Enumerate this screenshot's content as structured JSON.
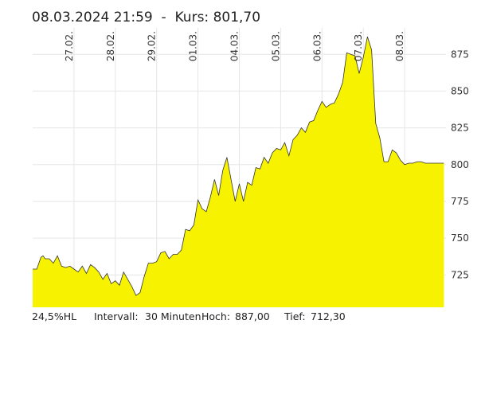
{
  "header": {
    "datetime": "08.03.2024 21:59",
    "separator": "-",
    "kurs_label": "Kurs:",
    "kurs_value": "801,70"
  },
  "footer": {
    "percent_range": "24,5%HL",
    "interval_label": "Intervall:",
    "interval_value": "30 Minuten",
    "high_label": "Hoch:",
    "high_value": "887,00",
    "low_label": "Tief:",
    "low_value": "712,30"
  },
  "colors": {
    "fill": "#f7f200",
    "line": "#333333",
    "grid": "#e6e6e6"
  },
  "chart_data": {
    "type": "area",
    "ylim": [
      703,
      893
    ],
    "yticks": [
      725,
      750,
      775,
      800,
      825,
      850,
      875
    ],
    "ytick_labels": [
      "725",
      "750",
      "775",
      "800",
      "825",
      "850",
      "875"
    ],
    "date_labels": [
      "27.02.",
      "28.02.",
      "29.02.",
      "01.03.",
      "04.03.",
      "05.03.",
      "06.03.",
      "07.03.",
      "08.03."
    ],
    "date_positions": [
      1,
      2,
      3,
      4,
      5,
      6,
      7,
      8,
      9
    ],
    "x": [
      0.0,
      0.1,
      0.2,
      0.25,
      0.3,
      0.4,
      0.5,
      0.6,
      0.7,
      0.8,
      0.9,
      1.0,
      1.1,
      1.2,
      1.3,
      1.4,
      1.5,
      1.6,
      1.7,
      1.8,
      1.9,
      2.0,
      2.1,
      2.2,
      2.3,
      2.4,
      2.5,
      2.6,
      2.7,
      2.8,
      2.9,
      3.0,
      3.1,
      3.2,
      3.3,
      3.4,
      3.5,
      3.6,
      3.7,
      3.8,
      3.9,
      4.0,
      4.1,
      4.2,
      4.3,
      4.4,
      4.5,
      4.6,
      4.7,
      4.8,
      4.9,
      5.0,
      5.1,
      5.2,
      5.3,
      5.4,
      5.5,
      5.6,
      5.7,
      5.8,
      5.9,
      6.0,
      6.1,
      6.2,
      6.3,
      6.4,
      6.5,
      6.6,
      6.7,
      6.8,
      6.9,
      7.0,
      7.1,
      7.2,
      7.3,
      7.4,
      7.5,
      7.6,
      7.7,
      7.8,
      7.9,
      8.0,
      8.1,
      8.2,
      8.3,
      8.4,
      8.5,
      8.6,
      8.7,
      8.8,
      8.9,
      9.0,
      9.1,
      9.2,
      9.3,
      9.4,
      9.5,
      9.55,
      9.6,
      9.7,
      9.8,
      9.9,
      9.95
    ],
    "values": [
      729,
      729,
      737,
      738,
      736,
      736,
      733,
      738,
      731,
      730,
      731,
      729,
      727,
      731,
      726,
      732,
      730,
      727,
      722,
      726,
      719,
      721,
      718,
      727,
      722,
      717,
      711,
      713,
      724,
      733,
      733,
      734,
      740,
      741,
      736,
      739,
      739,
      742,
      756,
      755,
      759,
      776,
      770,
      768,
      778,
      790,
      779,
      796,
      805,
      790,
      775,
      787,
      775,
      788,
      786,
      798,
      797,
      805,
      801,
      808,
      811,
      810,
      815,
      806,
      817,
      820,
      825,
      822,
      829,
      830,
      837,
      843,
      839,
      841,
      842,
      848,
      856,
      876,
      875,
      874,
      862,
      873,
      887,
      878,
      828,
      818,
      802,
      802,
      810,
      808,
      803,
      800,
      801,
      801,
      802,
      802,
      801,
      801,
      801,
      801,
      801,
      801,
      801
    ]
  }
}
